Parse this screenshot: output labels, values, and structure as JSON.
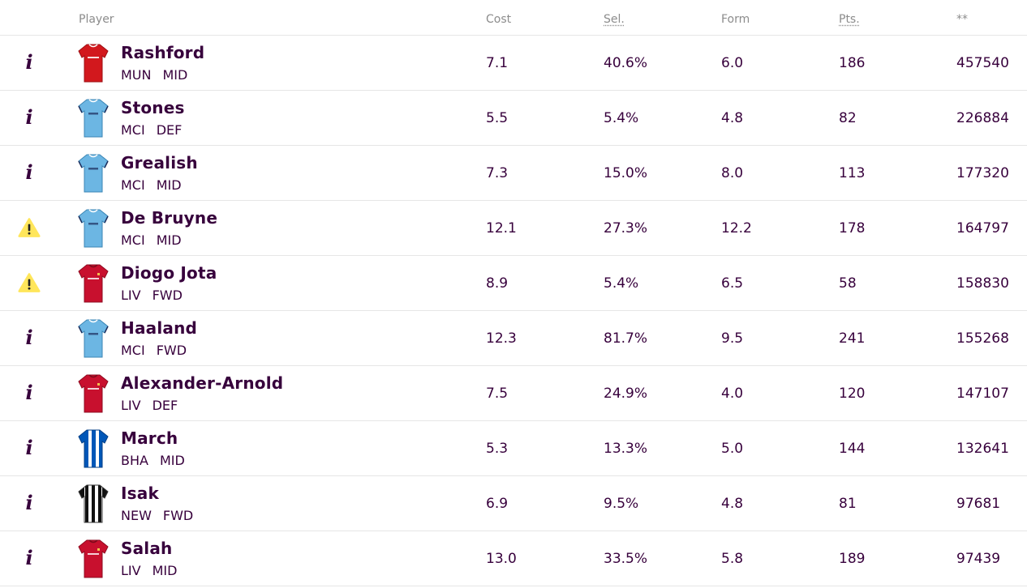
{
  "header": {
    "player": "Player",
    "cost": "Cost",
    "sel": "Sel.",
    "form": "Form",
    "pts": "Pts.",
    "extra": "**"
  },
  "colors": {
    "text": "#37003c",
    "header_text": "#8c8c8c",
    "warning": "#ffe65b",
    "divider": "#e6e6e6"
  },
  "players": [
    {
      "status_icon": "info-icon",
      "kit": "man-utd-shirt",
      "name": "Rashford",
      "team": "MUN",
      "pos": "MID",
      "cost": "7.1",
      "sel": "40.6%",
      "form": "6.0",
      "pts": "186",
      "extra": "457540"
    },
    {
      "status_icon": "info-icon",
      "kit": "man-city-shirt",
      "name": "Stones",
      "team": "MCI",
      "pos": "DEF",
      "cost": "5.5",
      "sel": "5.4%",
      "form": "4.8",
      "pts": "82",
      "extra": "226884"
    },
    {
      "status_icon": "info-icon",
      "kit": "man-city-shirt",
      "name": "Grealish",
      "team": "MCI",
      "pos": "MID",
      "cost": "7.3",
      "sel": "15.0%",
      "form": "8.0",
      "pts": "113",
      "extra": "177320"
    },
    {
      "status_icon": "warning-icon",
      "kit": "man-city-shirt",
      "name": "De Bruyne",
      "team": "MCI",
      "pos": "MID",
      "cost": "12.1",
      "sel": "27.3%",
      "form": "12.2",
      "pts": "178",
      "extra": "164797"
    },
    {
      "status_icon": "warning-icon",
      "kit": "liverpool-shirt",
      "name": "Diogo Jota",
      "team": "LIV",
      "pos": "FWD",
      "cost": "8.9",
      "sel": "5.4%",
      "form": "6.5",
      "pts": "58",
      "extra": "158830"
    },
    {
      "status_icon": "info-icon",
      "kit": "man-city-shirt",
      "name": "Haaland",
      "team": "MCI",
      "pos": "FWD",
      "cost": "12.3",
      "sel": "81.7%",
      "form": "9.5",
      "pts": "241",
      "extra": "155268"
    },
    {
      "status_icon": "info-icon",
      "kit": "liverpool-shirt",
      "name": "Alexander-Arnold",
      "team": "LIV",
      "pos": "DEF",
      "cost": "7.5",
      "sel": "24.9%",
      "form": "4.0",
      "pts": "120",
      "extra": "147107"
    },
    {
      "status_icon": "info-icon",
      "kit": "brighton-shirt",
      "name": "March",
      "team": "BHA",
      "pos": "MID",
      "cost": "5.3",
      "sel": "13.3%",
      "form": "5.0",
      "pts": "144",
      "extra": "132641"
    },
    {
      "status_icon": "info-icon",
      "kit": "newcastle-shirt",
      "name": "Isak",
      "team": "NEW",
      "pos": "FWD",
      "cost": "6.9",
      "sel": "9.5%",
      "form": "4.8",
      "pts": "81",
      "extra": "97681"
    },
    {
      "status_icon": "info-icon",
      "kit": "liverpool-shirt",
      "name": "Salah",
      "team": "LIV",
      "pos": "MID",
      "cost": "13.0",
      "sel": "33.5%",
      "form": "5.8",
      "pts": "189",
      "extra": "97439"
    }
  ]
}
